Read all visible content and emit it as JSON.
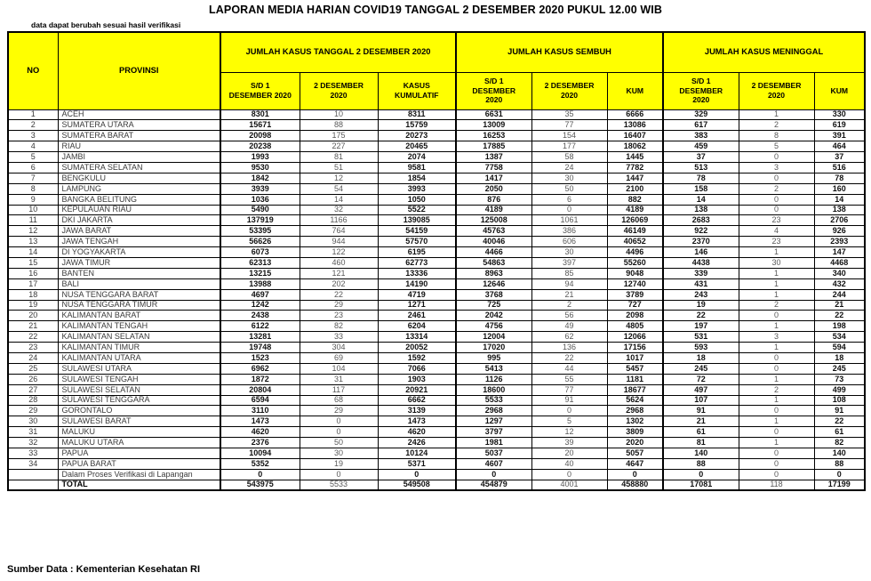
{
  "title": "LAPORAN MEDIA HARIAN COVID19 TANGGAL 2 DESEMBER 2020 PUKUL 12.00 WIB",
  "note": "data dapat berubah sesuai hasil verifikasi",
  "footer": "Sumber Data : Kementerian Kesehatan RI",
  "colors": {
    "header_bg": "#FFFF00",
    "border": "#000000",
    "daily_text": "#595959"
  },
  "table": {
    "col_no": "NO",
    "col_provinsi": "PROVINSI",
    "groups": [
      {
        "label": "JUMLAH KASUS TANGGAL 2 DESEMBER 2020",
        "cols": [
          "S/D 1\nDESEMBER 2020",
          "2 DESEMBER\n2020",
          "KASUS\nKUMULATIF"
        ]
      },
      {
        "label": "JUMLAH KASUS SEMBUH",
        "cols": [
          "S/D 1\nDESEMBER\n2020",
          "2 DESEMBER\n2020",
          "KUM"
        ]
      },
      {
        "label": "JUMLAH KASUS MENINGGAL",
        "cols": [
          "S/D 1\nDESEMBER\n2020",
          "2 DESEMBER\n2020",
          "KUM"
        ]
      }
    ],
    "rows": [
      {
        "no": "1",
        "provinsi": "ACEH",
        "values": [
          8301,
          10,
          8311,
          6631,
          35,
          6666,
          329,
          1,
          330
        ]
      },
      {
        "no": "2",
        "provinsi": "SUMATERA UTARA",
        "values": [
          15671,
          88,
          15759,
          13009,
          77,
          13086,
          617,
          2,
          619
        ]
      },
      {
        "no": "3",
        "provinsi": "SUMATERA BARAT",
        "values": [
          20098,
          175,
          20273,
          16253,
          154,
          16407,
          383,
          8,
          391
        ]
      },
      {
        "no": "4",
        "provinsi": "RIAU",
        "values": [
          20238,
          227,
          20465,
          17885,
          177,
          18062,
          459,
          5,
          464
        ]
      },
      {
        "no": "5",
        "provinsi": "JAMBI",
        "values": [
          1993,
          81,
          2074,
          1387,
          58,
          1445,
          37,
          0,
          37
        ]
      },
      {
        "no": "6",
        "provinsi": "SUMATERA SELATAN",
        "values": [
          9530,
          51,
          9581,
          7758,
          24,
          7782,
          513,
          3,
          516
        ]
      },
      {
        "no": "7",
        "provinsi": "BENGKULU",
        "values": [
          1842,
          12,
          1854,
          1417,
          30,
          1447,
          78,
          0,
          78
        ]
      },
      {
        "no": "8",
        "provinsi": "LAMPUNG",
        "values": [
          3939,
          54,
          3993,
          2050,
          50,
          2100,
          158,
          2,
          160
        ]
      },
      {
        "no": "9",
        "provinsi": "BANGKA BELITUNG",
        "values": [
          1036,
          14,
          1050,
          876,
          6,
          882,
          14,
          0,
          14
        ]
      },
      {
        "no": "10",
        "provinsi": "KEPULAUAN RIAU",
        "values": [
          5490,
          32,
          5522,
          4189,
          0,
          4189,
          138,
          0,
          138
        ]
      },
      {
        "no": "11",
        "provinsi": "DKI JAKARTA",
        "values": [
          137919,
          1166,
          139085,
          125008,
          1061,
          126069,
          2683,
          23,
          2706
        ]
      },
      {
        "no": "12",
        "provinsi": "JAWA BARAT",
        "values": [
          53395,
          764,
          54159,
          45763,
          386,
          46149,
          922,
          4,
          926
        ]
      },
      {
        "no": "13",
        "provinsi": "JAWA TENGAH",
        "values": [
          56626,
          944,
          57570,
          40046,
          606,
          40652,
          2370,
          23,
          2393
        ]
      },
      {
        "no": "14",
        "provinsi": "DI YOGYAKARTA",
        "values": [
          6073,
          122,
          6195,
          4466,
          30,
          4496,
          146,
          1,
          147
        ]
      },
      {
        "no": "15",
        "provinsi": "JAWA TIMUR",
        "values": [
          62313,
          460,
          62773,
          54863,
          397,
          55260,
          4438,
          30,
          4468
        ]
      },
      {
        "no": "16",
        "provinsi": "BANTEN",
        "values": [
          13215,
          121,
          13336,
          8963,
          85,
          9048,
          339,
          1,
          340
        ]
      },
      {
        "no": "17",
        "provinsi": "BALI",
        "values": [
          13988,
          202,
          14190,
          12646,
          94,
          12740,
          431,
          1,
          432
        ]
      },
      {
        "no": "18",
        "provinsi": "NUSA TENGGARA BARAT",
        "values": [
          4697,
          22,
          4719,
          3768,
          21,
          3789,
          243,
          1,
          244
        ]
      },
      {
        "no": "19",
        "provinsi": "NUSA TENGGARA TIMUR",
        "values": [
          1242,
          29,
          1271,
          725,
          2,
          727,
          19,
          2,
          21
        ]
      },
      {
        "no": "20",
        "provinsi": "KALIMANTAN BARAT",
        "values": [
          2438,
          23,
          2461,
          2042,
          56,
          2098,
          22,
          0,
          22
        ]
      },
      {
        "no": "21",
        "provinsi": "KALIMANTAN TENGAH",
        "values": [
          6122,
          82,
          6204,
          4756,
          49,
          4805,
          197,
          1,
          198
        ]
      },
      {
        "no": "22",
        "provinsi": "KALIMANTAN SELATAN",
        "values": [
          13281,
          33,
          13314,
          12004,
          62,
          12066,
          531,
          3,
          534
        ]
      },
      {
        "no": "23",
        "provinsi": "KALIMANTAN TIMUR",
        "values": [
          19748,
          304,
          20052,
          17020,
          136,
          17156,
          593,
          1,
          594
        ]
      },
      {
        "no": "24",
        "provinsi": "KALIMANTAN UTARA",
        "values": [
          1523,
          69,
          1592,
          995,
          22,
          1017,
          18,
          0,
          18
        ]
      },
      {
        "no": "25",
        "provinsi": "SULAWESI UTARA",
        "values": [
          6962,
          104,
          7066,
          5413,
          44,
          5457,
          245,
          0,
          245
        ]
      },
      {
        "no": "26",
        "provinsi": "SULAWESI TENGAH",
        "values": [
          1872,
          31,
          1903,
          1126,
          55,
          1181,
          72,
          1,
          73
        ]
      },
      {
        "no": "27",
        "provinsi": "SULAWESI SELATAN",
        "values": [
          20804,
          117,
          20921,
          18600,
          77,
          18677,
          497,
          2,
          499
        ]
      },
      {
        "no": "28",
        "provinsi": "SULAWESI TENGGARA",
        "values": [
          6594,
          68,
          6662,
          5533,
          91,
          5624,
          107,
          1,
          108
        ]
      },
      {
        "no": "29",
        "provinsi": "GORONTALO",
        "values": [
          3110,
          29,
          3139,
          2968,
          0,
          2968,
          91,
          0,
          91
        ]
      },
      {
        "no": "30",
        "provinsi": "SULAWESI BARAT",
        "values": [
          1473,
          0,
          1473,
          1297,
          5,
          1302,
          21,
          1,
          22
        ]
      },
      {
        "no": "31",
        "provinsi": "MALUKU",
        "values": [
          4620,
          0,
          4620,
          3797,
          12,
          3809,
          61,
          0,
          61
        ]
      },
      {
        "no": "32",
        "provinsi": "MALUKU UTARA",
        "values": [
          2376,
          50,
          2426,
          1981,
          39,
          2020,
          81,
          1,
          82
        ]
      },
      {
        "no": "33",
        "provinsi": "PAPUA",
        "values": [
          10094,
          30,
          10124,
          5037,
          20,
          5057,
          140,
          0,
          140
        ]
      },
      {
        "no": "34",
        "provinsi": "PAPUA BARAT",
        "values": [
          5352,
          19,
          5371,
          4607,
          40,
          4647,
          88,
          0,
          88
        ]
      },
      {
        "no": "",
        "provinsi": "Dalam Proses Verifikasi di Lapangan",
        "values": [
          0,
          0,
          0,
          0,
          0,
          0,
          0,
          0,
          0
        ]
      }
    ],
    "total": {
      "label": "TOTAL",
      "values": [
        543975,
        5533,
        549508,
        454879,
        4001,
        458880,
        17081,
        118,
        17199
      ]
    }
  }
}
